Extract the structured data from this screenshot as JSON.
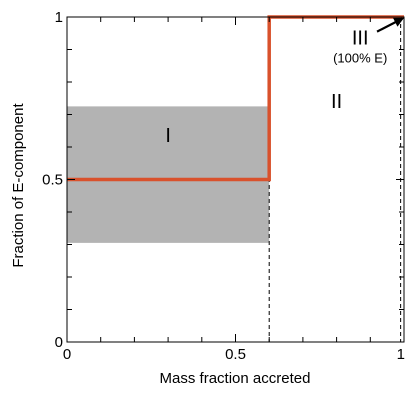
{
  "chart_data": {
    "type": "line",
    "xlabel": "Mass fraction accreted",
    "ylabel": "Fraction of E-component",
    "xlim": [
      0,
      1
    ],
    "ylim": [
      0,
      1
    ],
    "x_ticks": [
      {
        "value": 0,
        "label": "0"
      },
      {
        "value": 0.5,
        "label": "0.5"
      },
      {
        "value": 1,
        "label": "1"
      }
    ],
    "y_ticks": [
      {
        "value": 0,
        "label": "0"
      },
      {
        "value": 0.5,
        "label": "0.5"
      },
      {
        "value": 1,
        "label": "1"
      }
    ],
    "minor_tick_step": 0.1,
    "grid": false,
    "series": [
      {
        "color": "#d9512c",
        "x": [
          0,
          0.6,
          0.6,
          1
        ],
        "y": [
          0.5,
          0.5,
          1,
          1
        ]
      }
    ],
    "shaded_region": {
      "x": [
        0,
        0.6
      ],
      "y": [
        0.305,
        0.725
      ],
      "color": "#b3b3b3"
    },
    "dashed_lines": [
      {
        "x": 0.6
      },
      {
        "x": 0.99
      }
    ],
    "regions": [
      {
        "label": "I",
        "x": 0.3,
        "y": 0.615
      },
      {
        "label": "II",
        "x": 0.8,
        "y": 0.72
      },
      {
        "label": "III",
        "note": "(100% E)",
        "x": 0.87,
        "y": 0.915
      }
    ],
    "arrow": {
      "from": [
        0.92,
        0.955
      ],
      "to": [
        0.995,
        0.995
      ]
    }
  }
}
